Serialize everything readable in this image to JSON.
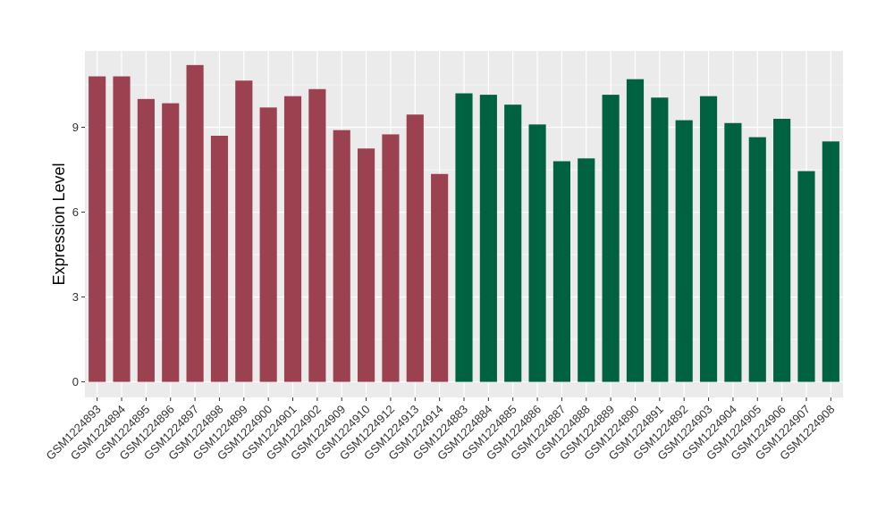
{
  "chart_data": {
    "type": "bar",
    "ylabel": "Expression Level",
    "xlabel": "",
    "ylim": [
      -0.55,
      11.7
    ],
    "yticks": [
      0,
      3,
      6,
      9
    ],
    "grid": true,
    "panel_background": "#EBEBEB",
    "grid_color": "#FFFFFF",
    "categories": [
      "GSM1224893",
      "GSM1224894",
      "GSM1224895",
      "GSM1224896",
      "GSM1224897",
      "GSM1224898",
      "GSM1224899",
      "GSM1224900",
      "GSM1224901",
      "GSM1224902",
      "GSM1224909",
      "GSM1224910",
      "GSM1224912",
      "GSM1224913",
      "GSM1224914",
      "GSM1224883",
      "GSM1224884",
      "GSM1224885",
      "GSM1224886",
      "GSM1224887",
      "GSM1224888",
      "GSM1224889",
      "GSM1224890",
      "GSM1224891",
      "GSM1224892",
      "GSM1224903",
      "GSM1224904",
      "GSM1224905",
      "GSM1224906",
      "GSM1224907",
      "GSM1224908"
    ],
    "values": [
      10.8,
      10.8,
      10.0,
      9.85,
      11.2,
      8.7,
      10.65,
      9.7,
      10.1,
      10.35,
      8.9,
      8.25,
      8.75,
      9.45,
      7.35,
      10.2,
      10.15,
      9.8,
      9.1,
      7.8,
      7.9,
      10.15,
      10.7,
      10.05,
      9.25,
      10.1,
      9.15,
      8.65,
      9.3,
      7.45,
      8.5
    ],
    "groups": [
      0,
      0,
      0,
      0,
      0,
      0,
      0,
      0,
      0,
      0,
      0,
      0,
      0,
      0,
      0,
      1,
      1,
      1,
      1,
      1,
      1,
      1,
      1,
      1,
      1,
      1,
      1,
      1,
      1,
      1,
      1
    ],
    "group_colors": [
      "#9B4150",
      "#006241"
    ]
  }
}
